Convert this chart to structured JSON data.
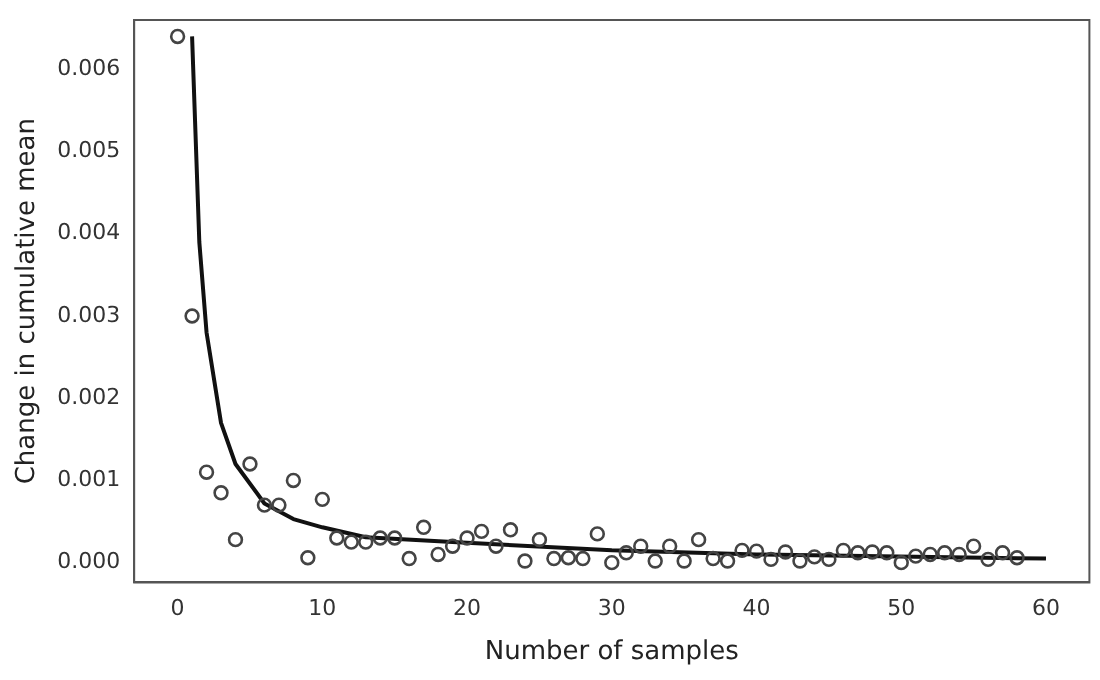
{
  "chart_data": {
    "type": "scatter",
    "xlabel": "Number of samples",
    "ylabel": "Change in cumulative mean",
    "xlim": [
      -3,
      63
    ],
    "xticks": [
      0,
      10,
      20,
      30,
      40,
      50,
      60
    ],
    "ylim": [
      -0.00024,
      0.0066
    ],
    "yticks": [
      {
        "value": 0,
        "label": "0.000"
      },
      {
        "value": 0.001,
        "label": "0.001"
      },
      {
        "value": 0.002,
        "label": "0.002"
      },
      {
        "value": 0.003,
        "label": "0.003"
      },
      {
        "value": 0.004,
        "label": "0.004"
      },
      {
        "value": 0.005,
        "label": "0.005"
      },
      {
        "value": 0.006,
        "label": "0.006"
      }
    ],
    "grid": false,
    "legend": false,
    "series": [
      {
        "type": "scatter",
        "marker": "circle",
        "color": "#444444",
        "x": [
          0,
          1,
          2,
          3,
          4,
          5,
          6,
          7,
          8,
          9,
          10,
          11,
          12,
          13,
          14,
          15,
          16,
          17,
          18,
          19,
          20,
          21,
          22,
          23,
          24,
          25,
          26,
          27,
          28,
          29,
          30,
          31,
          32,
          33,
          34,
          35,
          36,
          37,
          38,
          39,
          40,
          41,
          42,
          43,
          44,
          45,
          46,
          47,
          48,
          49,
          50,
          51,
          52,
          53,
          54,
          55,
          56,
          57,
          58
        ],
        "values": [
          0.0064,
          0.003,
          0.0011,
          0.00085,
          0.00028,
          0.0012,
          0.0007,
          0.0007,
          0.001,
          6e-05,
          0.00077,
          0.0003,
          0.00025,
          0.00025,
          0.0003,
          0.0003,
          5e-05,
          0.00043,
          0.0001,
          0.0002,
          0.0003,
          0.00038,
          0.0002,
          0.0004,
          2e-05,
          0.00028,
          5e-05,
          6e-05,
          5e-05,
          0.00035,
          0.0,
          0.00012,
          0.0002,
          2e-05,
          0.0002,
          2e-05,
          0.00028,
          5e-05,
          2e-05,
          0.00015,
          0.00014,
          4e-05,
          0.00013,
          2e-05,
          7e-05,
          4e-05,
          0.00015,
          0.00012,
          0.00013,
          0.00012,
          0.0,
          8e-05,
          0.0001,
          0.00012,
          0.0001,
          0.0002,
          4e-05,
          0.00012,
          6e-05
        ]
      },
      {
        "type": "line",
        "marker": "none",
        "line_style": "solid",
        "color": "#111111",
        "x": [
          1,
          1.5,
          2,
          3,
          4,
          6,
          8,
          10,
          13,
          19,
          30,
          40,
          60
        ],
        "values": [
          0.0064,
          0.0039,
          0.0028,
          0.0017,
          0.0012,
          0.00072,
          0.00053,
          0.00043,
          0.00031,
          0.00025,
          0.00015,
          0.0001,
          5e-05
        ]
      }
    ]
  }
}
